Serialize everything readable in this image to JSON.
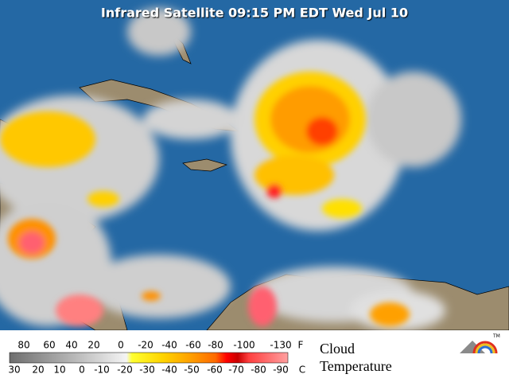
{
  "header": {
    "title": "Infrared Satellite 09:15 PM EDT Wed Jul 10"
  },
  "legend": {
    "fahrenheit": {
      "labels": [
        "80",
        "60",
        "40",
        "20",
        "0",
        "-20",
        "-40",
        "-60",
        "-80",
        "-100",
        "-130"
      ],
      "unit": "F"
    },
    "celsius": {
      "labels": [
        "30",
        "20",
        "10",
        "0",
        "-10",
        "-20",
        "-30",
        "-40",
        "-50",
        "-60",
        "-70",
        "-80",
        "-90"
      ],
      "unit": "C"
    },
    "caption": [
      "Cloud",
      "Temperature"
    ]
  },
  "logo": {
    "mark": "TM"
  }
}
